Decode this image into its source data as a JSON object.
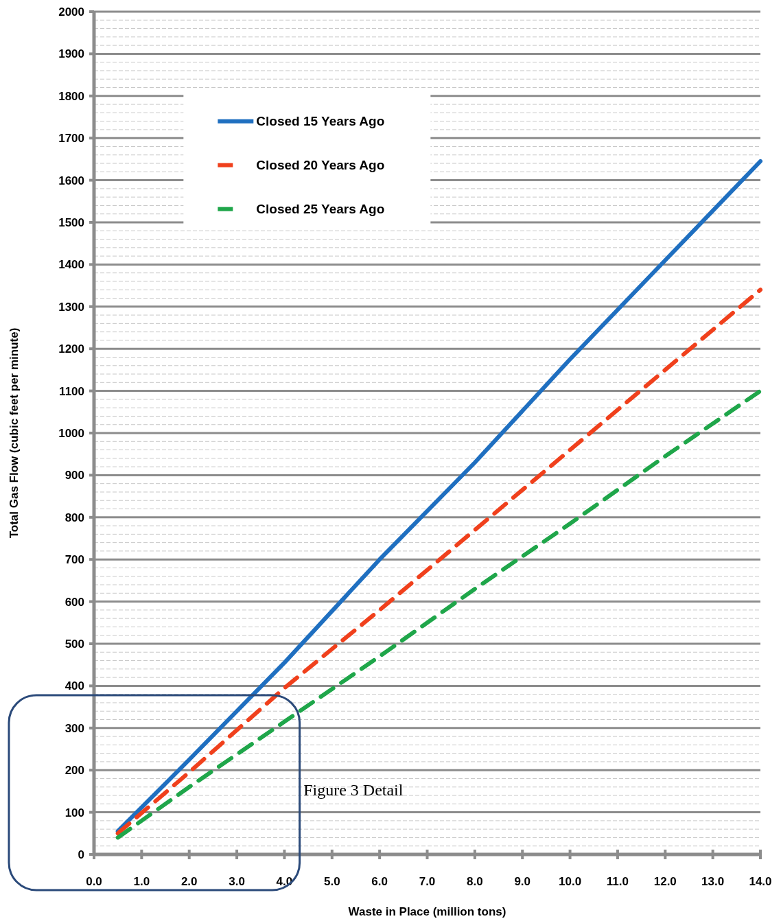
{
  "chart_data": {
    "type": "line",
    "xlabel": "Waste in Place (million tons)",
    "ylabel": "Total Gas Flow (cubic feet per minute)",
    "x": [
      0.5,
      2,
      4,
      6,
      8,
      10,
      12,
      14
    ],
    "series": [
      {
        "name": "Closed 15 Years Ago",
        "color": "#1f6fc0",
        "line_style": "solid",
        "values": [
          55,
          225,
          455,
          700,
          930,
          1175,
          1410,
          1645
        ]
      },
      {
        "name": "Closed 20 Years Ago",
        "color": "#f0401c",
        "line_style": "dashed",
        "values": [
          50,
          195,
          395,
          580,
          770,
          960,
          1150,
          1340
        ]
      },
      {
        "name": "Closed 25 Years Ago",
        "color": "#1fa64a",
        "line_style": "dashed",
        "values": [
          40,
          160,
          315,
          470,
          630,
          785,
          945,
          1100
        ]
      }
    ],
    "xlim": [
      0,
      14
    ],
    "ylim": [
      0,
      2000
    ],
    "xticks": [
      {
        "value": 0,
        "label": "0.0"
      },
      {
        "value": 1,
        "label": "1.0"
      },
      {
        "value": 2,
        "label": "2.0"
      },
      {
        "value": 3,
        "label": "3.0"
      },
      {
        "value": 4,
        "label": "4.0"
      },
      {
        "value": 5,
        "label": "5.0"
      },
      {
        "value": 6,
        "label": "6.0"
      },
      {
        "value": 7,
        "label": "7.0"
      },
      {
        "value": 8,
        "label": "8.0"
      },
      {
        "value": 9,
        "label": "9.0"
      },
      {
        "value": 10,
        "label": "10.0"
      },
      {
        "value": 11,
        "label": "11.0"
      },
      {
        "value": 12,
        "label": "12.0"
      },
      {
        "value": 13,
        "label": "13.0"
      },
      {
        "value": 14,
        "label": "14.0"
      }
    ],
    "yticks": [
      0,
      100,
      200,
      300,
      400,
      500,
      600,
      700,
      800,
      900,
      1000,
      1100,
      1200,
      1300,
      1400,
      1500,
      1600,
      1700,
      1800,
      1900,
      2000
    ],
    "grid": "y",
    "legend": "top left",
    "marker": "none",
    "annotations": [
      "Figure 3 Detail"
    ]
  }
}
